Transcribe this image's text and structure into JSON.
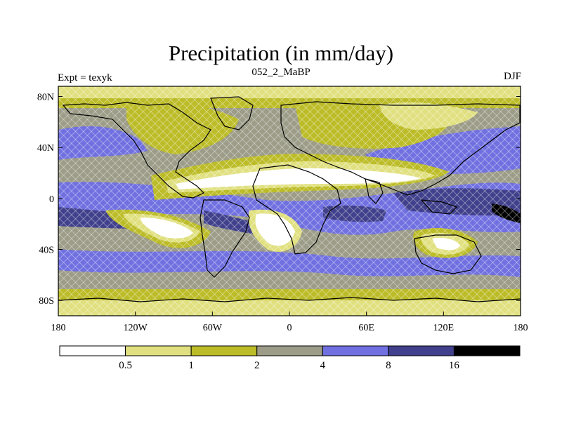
{
  "title": "Precipitation (in mm/day)",
  "subtitle": "052_2_MaBP",
  "left_label": "Expt = texyk",
  "right_label": "DJF",
  "lat_ticks": [
    {
      "label": "80N",
      "lat": 80
    },
    {
      "label": "40N",
      "lat": 40
    },
    {
      "label": "0",
      "lat": 0
    },
    {
      "label": "40S",
      "lat": -40
    },
    {
      "label": "80S",
      "lat": -80
    }
  ],
  "lon_ticks": [
    {
      "label": "180",
      "lon": -180
    },
    {
      "label": "120W",
      "lon": -120
    },
    {
      "label": "60W",
      "lon": -60
    },
    {
      "label": "0",
      "lon": 0
    },
    {
      "label": "60E",
      "lon": 60
    },
    {
      "label": "120E",
      "lon": 120
    },
    {
      "label": "180",
      "lon": 180
    }
  ],
  "colorbar": {
    "levels": [
      "0.5",
      "1",
      "2",
      "4",
      "8",
      "16"
    ],
    "colors": [
      "#ffffff",
      "#e0e080",
      "#bcbc28",
      "#9c9c88",
      "#7070e0",
      "#40408c",
      "#000000"
    ]
  }
}
